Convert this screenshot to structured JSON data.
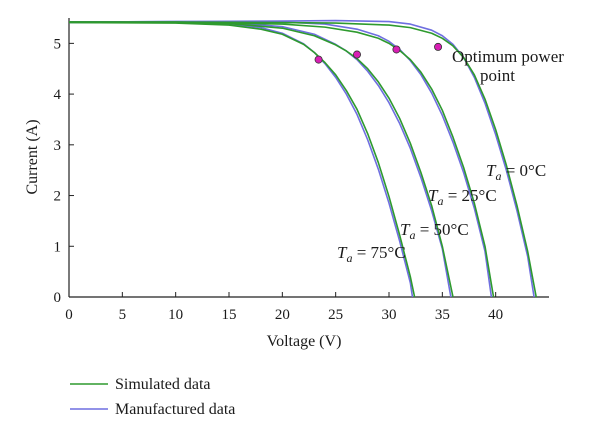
{
  "chart_data": {
    "type": "line",
    "xlabel": "Voltage (V)",
    "ylabel": "Current (A)",
    "xlim": [
      0,
      45
    ],
    "ylim": [
      0,
      5.5
    ],
    "x_ticks": [
      0,
      5,
      10,
      15,
      20,
      25,
      30,
      35,
      40
    ],
    "y_ticks": [
      0,
      1,
      2,
      3,
      4,
      5
    ],
    "grid": false,
    "legend_position": "bottom-left, below plot",
    "legend": [
      {
        "label": "Simulated data",
        "color": "#2e9a2e"
      },
      {
        "label": "Manufactured data",
        "color": "#6f6fe0"
      }
    ],
    "temperature_labels": [
      {
        "prefix": "T",
        "subscript": "a",
        "rest": " = 0°C",
        "for_voc": 43.8
      },
      {
        "prefix": "T",
        "subscript": "a",
        "rest": " = 25°C",
        "for_voc": 39.8
      },
      {
        "prefix": "T",
        "subscript": "a",
        "rest": " = 50°C",
        "for_voc": 36.0
      },
      {
        "prefix": "T",
        "subscript": "a",
        "rest": " = 75°C",
        "for_voc": 32.4
      }
    ],
    "annotation": {
      "line1": "Optimum power",
      "line2": "point"
    },
    "mpp_color": "#d81fb4",
    "series": [
      {
        "name": "Simulated data",
        "group": "0°C",
        "color": "#2e9a2e",
        "x": [
          0,
          10,
          20,
          25,
          30,
          32,
          34,
          35,
          36,
          37,
          38,
          39,
          40,
          41,
          42,
          43,
          43.8
        ],
        "y": [
          5.42,
          5.42,
          5.41,
          5.4,
          5.36,
          5.31,
          5.2,
          5.1,
          4.95,
          4.72,
          4.38,
          3.9,
          3.3,
          2.6,
          1.8,
          0.9,
          0
        ]
      },
      {
        "name": "Manufactured data",
        "group": "0°C",
        "color": "#6f6fe0",
        "x": [
          0,
          10,
          20,
          25,
          30,
          32,
          34,
          35,
          36,
          37,
          38,
          39,
          40,
          41,
          42,
          43,
          43.6
        ],
        "y": [
          5.42,
          5.43,
          5.44,
          5.45,
          5.43,
          5.38,
          5.26,
          5.15,
          4.98,
          4.72,
          4.33,
          3.82,
          3.2,
          2.5,
          1.7,
          0.8,
          0
        ]
      },
      {
        "name": "Simulated data",
        "group": "25°C",
        "color": "#2e9a2e",
        "x": [
          0,
          10,
          20,
          24,
          27,
          29,
          30,
          31,
          32,
          33,
          34,
          35,
          36,
          37,
          38,
          39,
          39.8
        ],
        "y": [
          5.42,
          5.42,
          5.38,
          5.32,
          5.22,
          5.1,
          5.0,
          4.86,
          4.68,
          4.43,
          4.1,
          3.68,
          3.15,
          2.55,
          1.85,
          1.0,
          0
        ]
      },
      {
        "name": "Manufactured data",
        "group": "25°C",
        "color": "#6f6fe0",
        "x": [
          0,
          10,
          20,
          24,
          27,
          29,
          30,
          31,
          32,
          33,
          34,
          35,
          36,
          37,
          38,
          39,
          39.6
        ],
        "y": [
          5.42,
          5.43,
          5.42,
          5.38,
          5.28,
          5.15,
          5.04,
          4.88,
          4.66,
          4.38,
          4.02,
          3.58,
          3.05,
          2.45,
          1.75,
          0.9,
          0
        ]
      },
      {
        "name": "Simulated data",
        "group": "50°C",
        "color": "#2e9a2e",
        "x": [
          0,
          10,
          15,
          20,
          23,
          25,
          26,
          27,
          28,
          29,
          30,
          31,
          32,
          33,
          34,
          35,
          36
        ],
        "y": [
          5.42,
          5.41,
          5.39,
          5.3,
          5.15,
          4.97,
          4.85,
          4.7,
          4.5,
          4.24,
          3.92,
          3.52,
          3.03,
          2.45,
          1.8,
          1.0,
          0
        ]
      },
      {
        "name": "Manufactured data",
        "group": "50°C",
        "color": "#6f6fe0",
        "x": [
          0,
          10,
          15,
          20,
          23,
          25,
          26,
          27,
          28,
          29,
          30,
          31,
          32,
          33,
          34,
          35,
          35.8
        ],
        "y": [
          5.42,
          5.42,
          5.41,
          5.33,
          5.18,
          4.98,
          4.85,
          4.68,
          4.45,
          4.17,
          3.83,
          3.42,
          2.93,
          2.35,
          1.7,
          0.95,
          0
        ]
      },
      {
        "name": "Simulated data",
        "group": "75°C",
        "color": "#2e9a2e",
        "x": [
          0,
          10,
          15,
          18,
          20,
          22,
          23,
          24,
          25,
          26,
          27,
          28,
          29,
          30,
          31,
          32,
          32.4
        ],
        "y": [
          5.41,
          5.4,
          5.36,
          5.28,
          5.18,
          4.98,
          4.82,
          4.62,
          4.38,
          4.07,
          3.7,
          3.22,
          2.65,
          1.98,
          1.22,
          0.4,
          0
        ]
      },
      {
        "name": "Manufactured data",
        "group": "75°C",
        "color": "#6f6fe0",
        "x": [
          0,
          10,
          15,
          18,
          20,
          22,
          23,
          24,
          25,
          26,
          27,
          28,
          29,
          30,
          31,
          32,
          32.2
        ],
        "y": [
          5.41,
          5.41,
          5.38,
          5.31,
          5.2,
          4.99,
          4.82,
          4.6,
          4.33,
          4.0,
          3.6,
          3.1,
          2.52,
          1.85,
          1.1,
          0.28,
          0
        ]
      }
    ],
    "mpp_points": [
      {
        "group": "0°C",
        "x": 34.6,
        "y": 4.93
      },
      {
        "group": "25°C",
        "x": 30.7,
        "y": 4.88
      },
      {
        "group": "50°C",
        "x": 27.0,
        "y": 4.78
      },
      {
        "group": "75°C",
        "x": 23.4,
        "y": 4.68
      }
    ]
  }
}
